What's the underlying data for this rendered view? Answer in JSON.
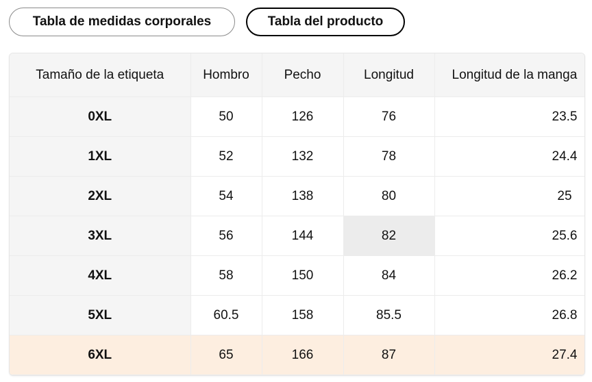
{
  "tabs": [
    {
      "label": "Tabla de medidas corporales",
      "active": false
    },
    {
      "label": "Tabla del producto",
      "active": true
    }
  ],
  "table": {
    "headers": [
      "Tamaño de la etiqueta",
      "Hombro",
      "Pecho",
      "Longitud",
      "Longitud de la manga"
    ],
    "rows": [
      [
        "0XL",
        "50",
        "126",
        "76",
        "23.5"
      ],
      [
        "1XL",
        "52",
        "132",
        "78",
        "24.4"
      ],
      [
        "2XL",
        "54",
        "138",
        "80",
        "25"
      ],
      [
        "3XL",
        "56",
        "144",
        "82",
        "25.6"
      ],
      [
        "4XL",
        "58",
        "150",
        "84",
        "26.2"
      ],
      [
        "5XL",
        "60.5",
        "158",
        "85.5",
        "26.8"
      ],
      [
        "6XL",
        "65",
        "166",
        "87",
        "27.4"
      ]
    ],
    "highlighted_row": "6XL",
    "highlight_color": "#fdeee0"
  }
}
